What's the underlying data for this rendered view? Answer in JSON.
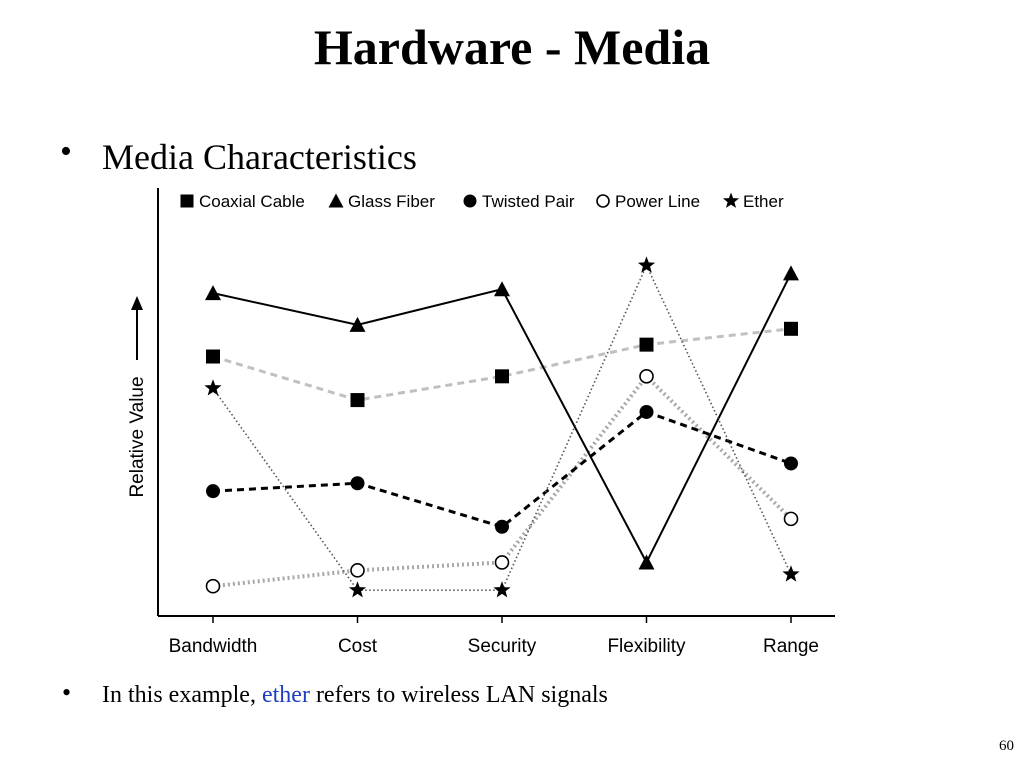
{
  "slide": {
    "title": "Hardware - Media",
    "bullet_1": "Media Characteristics",
    "bullet_2_prefix": "In this example, ",
    "bullet_2_highlight": "ether",
    "bullet_2_suffix": " refers to wireless LAN signals",
    "bullet_glyph": "•",
    "page_number": "60",
    "highlight_color": "#1f3fbf"
  },
  "chart_data": {
    "type": "line",
    "title": "",
    "xlabel": "",
    "ylabel": "Relative Value",
    "categories": [
      "Bandwidth",
      "Cost",
      "Security",
      "Flexibility",
      "Range"
    ],
    "ylim": [
      0,
      100
    ],
    "grid": false,
    "legend_position": "top",
    "series": [
      {
        "name": "Coaxial Cable",
        "marker": "square",
        "line_style": "dashed",
        "line_color": "#c0c0c0",
        "values": [
          63,
          52,
          58,
          66,
          70
        ]
      },
      {
        "name": "Glass Fiber",
        "marker": "triangle",
        "line_style": "solid",
        "line_color": "#000000",
        "values": [
          79,
          71,
          80,
          11,
          84
        ]
      },
      {
        "name": "Twisted Pair",
        "marker": "circle",
        "line_style": "dashed",
        "line_color": "#000000",
        "values": [
          29,
          31,
          20,
          49,
          36
        ]
      },
      {
        "name": "Power Line",
        "marker": "open-circle",
        "line_style": "dotted",
        "line_color": "#a8a8a8",
        "values": [
          5,
          9,
          11,
          58,
          22
        ]
      },
      {
        "name": "Ether",
        "marker": "star",
        "line_style": "dotted-thin",
        "line_color": "#555555",
        "values": [
          55,
          4,
          4,
          86,
          8
        ]
      }
    ]
  }
}
